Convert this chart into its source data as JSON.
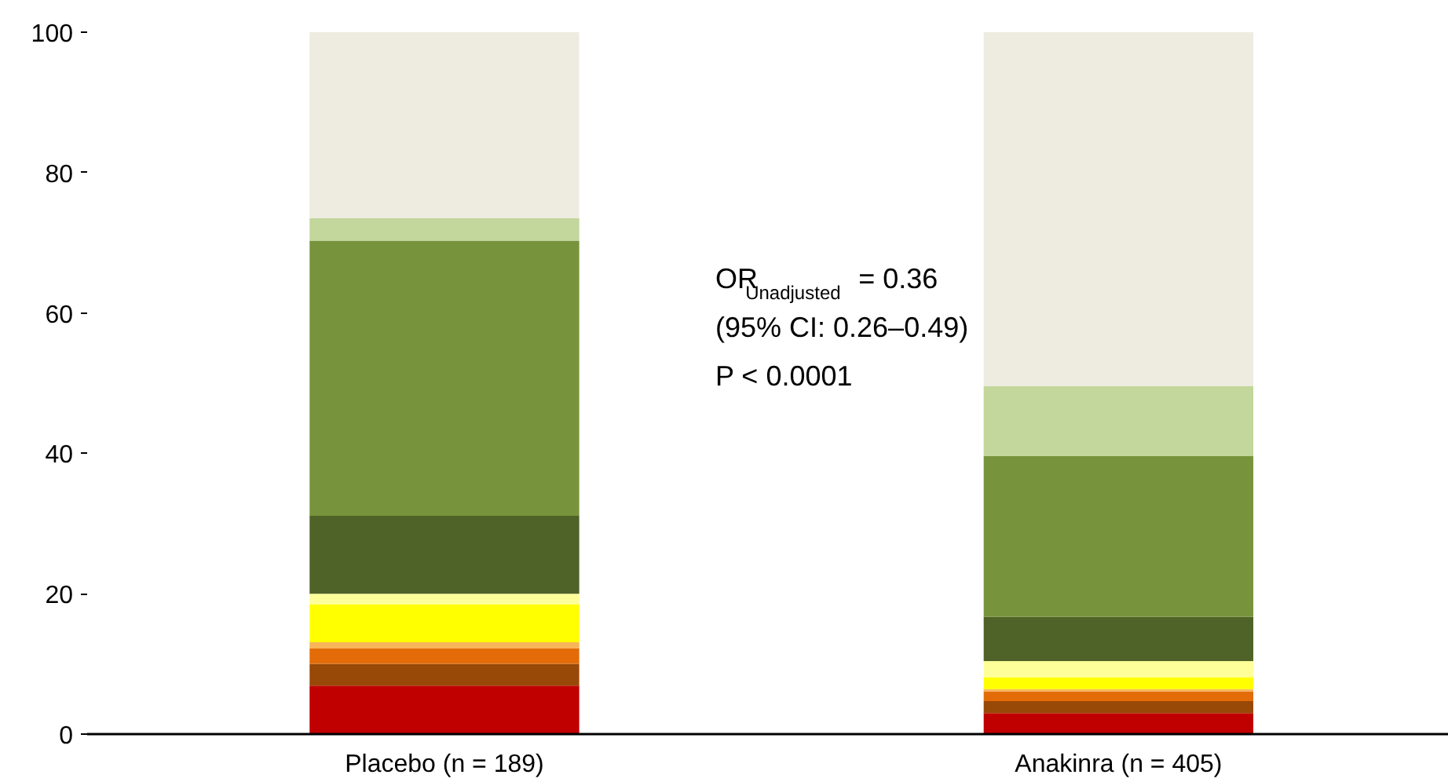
{
  "chart_data": {
    "type": "bar",
    "stacked": true,
    "categories": [
      "Placebo (n = 189)",
      "Anakinra (n = 405)"
    ],
    "series": [
      {
        "color": "#c00000",
        "values": [
          6.9,
          3.0
        ]
      },
      {
        "color": "#984807",
        "values": [
          3.1,
          1.7
        ]
      },
      {
        "color": "#e36c09",
        "values": [
          2.2,
          1.4
        ]
      },
      {
        "color": "#f9b55a",
        "values": [
          0.9,
          0.3
        ]
      },
      {
        "color": "#ffff00",
        "values": [
          5.4,
          1.7
        ]
      },
      {
        "color": "#ffff99",
        "values": [
          1.5,
          2.3
        ]
      },
      {
        "color": "#4f6228",
        "values": [
          11.1,
          6.3
        ]
      },
      {
        "color": "#77933c",
        "values": [
          39.2,
          22.9
        ]
      },
      {
        "color": "#c3d69b",
        "values": [
          3.2,
          10.0
        ]
      },
      {
        "color": "#eeece1",
        "values": [
          26.5,
          50.4
        ]
      }
    ],
    "ylim": [
      0,
      100
    ],
    "yticks": [
      0,
      20,
      40,
      60,
      80,
      100
    ],
    "grid": false,
    "annotations": [
      "OR$_{Unadjusted}$ = 0.36",
      "(95% CI: 0.26–0.49)",
      "P < 0.0001"
    ]
  }
}
